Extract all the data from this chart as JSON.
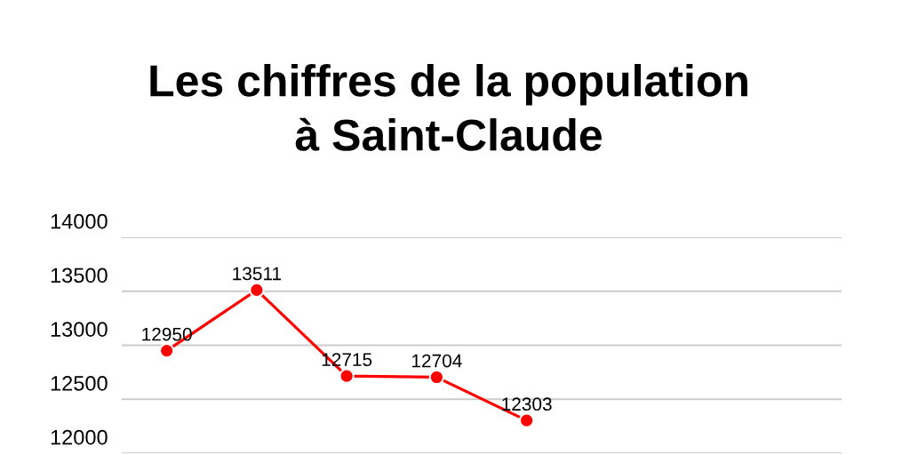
{
  "chart_data": {
    "type": "line",
    "title": "Les chiffres de la population\nà Saint-Claude",
    "categories": [
      null,
      null,
      null,
      null,
      null,
      null,
      null,
      null
    ],
    "series": [
      {
        "color": "#ff0000",
        "values": [
          12950,
          13511,
          12715,
          12704,
          12303,
          null,
          null,
          null
        ]
      }
    ],
    "data_labels": true,
    "ylim": [
      12000,
      14000
    ],
    "yticks": [
      12000,
      12500,
      13000,
      13500,
      14000
    ],
    "grid": "y",
    "marker": "circle",
    "line_style": "solid",
    "tick_labels": "y"
  }
}
